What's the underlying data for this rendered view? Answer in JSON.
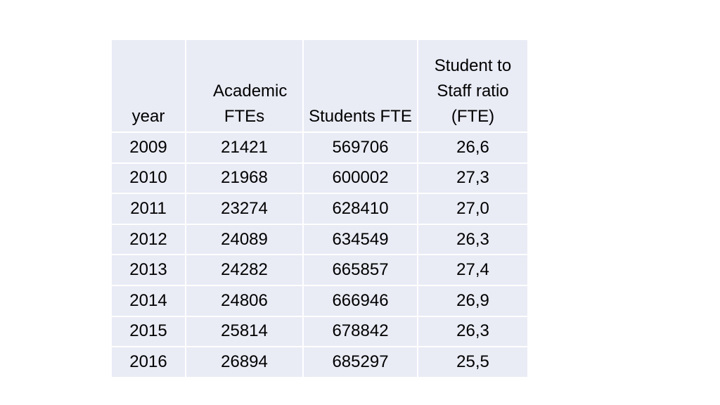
{
  "table": {
    "headers": [
      "year",
      "Academic FTEs",
      "Students FTE",
      "Student to Staff ratio (FTE)"
    ],
    "rows": [
      [
        "2009",
        "21421",
        "569706",
        "26,6"
      ],
      [
        "2010",
        "21968",
        "600002",
        "27,3"
      ],
      [
        "2011",
        "23274",
        "628410",
        "27,0"
      ],
      [
        "2012",
        "24089",
        "634549",
        "26,3"
      ],
      [
        "2013",
        "24282",
        "665857",
        "27,4"
      ],
      [
        "2014",
        "24806",
        "666946",
        "26,9"
      ],
      [
        "2015",
        "25814",
        "678842",
        "26,3"
      ],
      [
        "2016",
        "26894",
        "685297",
        "25,5"
      ]
    ]
  },
  "colors": {
    "cell_background": "#e9ebf5",
    "grid_lines": "#ffffff",
    "text": "#000000"
  }
}
